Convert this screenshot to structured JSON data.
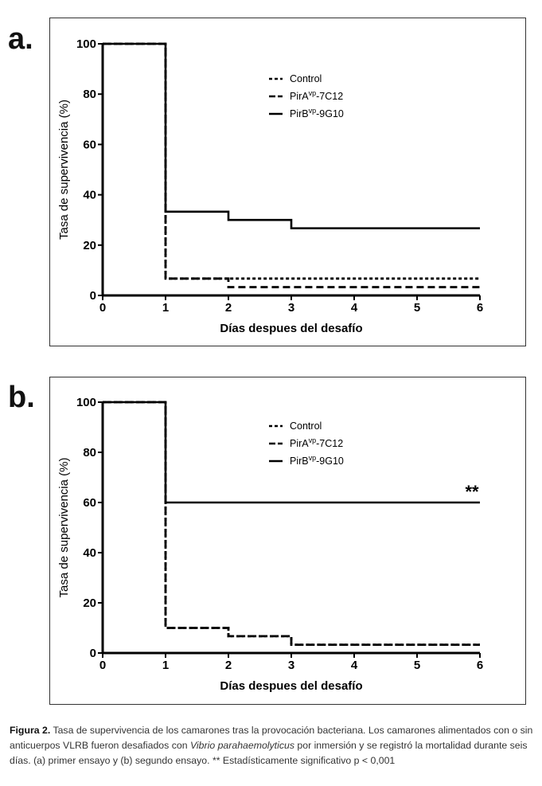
{
  "chart_data": [
    {
      "panel_label": "a.",
      "type": "line",
      "step": true,
      "xlabel": "Días despues del desafío",
      "ylabel": "Tasa de supervivencia (%)",
      "xlim": [
        0,
        6
      ],
      "ylim": [
        0,
        100
      ],
      "xticks": [
        "0",
        "1",
        "2",
        "3",
        "4",
        "5",
        "6"
      ],
      "yticks": [
        "0",
        "20",
        "40",
        "60",
        "80",
        "100"
      ],
      "legend_position": "top-right",
      "series": [
        {
          "name": "Control",
          "sup": "",
          "style": "dotted",
          "x": [
            0,
            1,
            2,
            3,
            4,
            5,
            6
          ],
          "y": [
            100,
            6.7,
            6.7,
            6.7,
            6.7,
            6.7,
            6.7
          ]
        },
        {
          "name": "PirA",
          "sup": "vp",
          "suffix": "-7C12",
          "style": "dashed",
          "x": [
            0,
            1,
            2,
            3,
            4,
            5,
            6
          ],
          "y": [
            100,
            6.7,
            3.3,
            3.3,
            3.3,
            3.3,
            3.3
          ]
        },
        {
          "name": "PirB",
          "sup": "vp",
          "suffix": "-9G10",
          "style": "solid",
          "x": [
            0,
            1,
            2,
            3,
            4,
            5,
            6
          ],
          "y": [
            100,
            33.3,
            30,
            26.7,
            26.7,
            26.7,
            26.7
          ]
        }
      ],
      "annotation": ""
    },
    {
      "panel_label": "b.",
      "type": "line",
      "step": true,
      "xlabel": "Días despues del desafío",
      "ylabel": "Tasa de supervivencia (%)",
      "xlim": [
        0,
        6
      ],
      "ylim": [
        0,
        100
      ],
      "xticks": [
        "0",
        "1",
        "2",
        "3",
        "4",
        "5",
        "6"
      ],
      "yticks": [
        "0",
        "20",
        "40",
        "60",
        "80",
        "100"
      ],
      "legend_position": "top-right",
      "series": [
        {
          "name": "Control",
          "sup": "",
          "style": "dotted",
          "x": [
            0,
            1,
            2,
            3,
            4,
            5,
            6
          ],
          "y": [
            100,
            10,
            6.7,
            3.3,
            3.3,
            3.3,
            3.3
          ]
        },
        {
          "name": "PirA",
          "sup": "vp",
          "suffix": "-7C12",
          "style": "dashed",
          "x": [
            0,
            1,
            2,
            3,
            4,
            5,
            6
          ],
          "y": [
            100,
            10,
            6.7,
            3.3,
            3.3,
            3.3,
            3.3
          ]
        },
        {
          "name": "PirB",
          "sup": "vp",
          "suffix": "-9G10",
          "style": "solid",
          "x": [
            0,
            1,
            2,
            3,
            4,
            5,
            6
          ],
          "y": [
            100,
            60,
            60,
            60,
            60,
            60,
            60
          ]
        }
      ],
      "annotation": "**"
    }
  ],
  "caption": {
    "label": "Figura 2.",
    "part1": " Tasa de supervivencia de los camarones tras la provocación bacteriana. Los camarones alimentados con o sin anticuerpos VLRB fueron desafiados con ",
    "italic": "Vibrio parahaemolyticus",
    "part2": " por inmersión y se registró la mortalidad durante seis días. (a) primer ensayo y (b) segundo ensayo. ** Estadísticamente significativo p < 0,001"
  }
}
